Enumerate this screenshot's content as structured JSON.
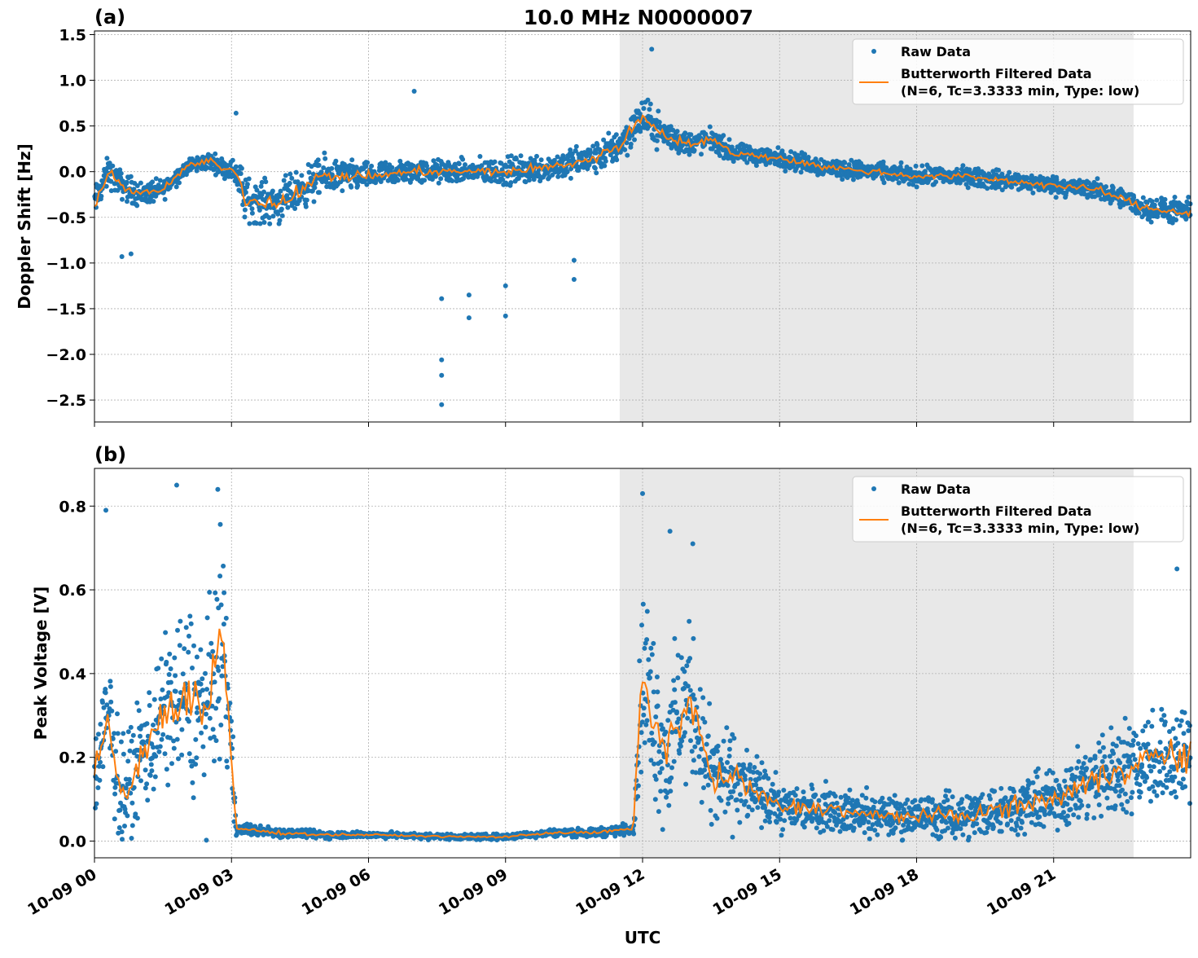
{
  "title": "10.0 MHz N0000007",
  "xlabel": "UTC",
  "colors": {
    "raw": "#1f77b4",
    "filtered": "#ff7f0e",
    "shade": "#e8e8e8",
    "grid": "#b0b0b0"
  },
  "chart_data": [
    {
      "type": "line",
      "panel_label": "(a)",
      "ylabel": "Doppler Shift [Hz]",
      "xlim": [
        0,
        24
      ],
      "ylim": [
        -2.74,
        1.54
      ],
      "x_ticks": [
        0,
        3,
        6,
        9,
        12,
        15,
        18,
        21
      ],
      "x_tick_labels": [
        "10-09 00",
        "10-09 03",
        "10-09 06",
        "10-09 09",
        "10-09 12",
        "10-09 15",
        "10-09 18",
        "10-09 21"
      ],
      "y_ticks": [
        1.5,
        1.0,
        0.5,
        0.0,
        -0.5,
        -1.0,
        -1.5,
        -2.0,
        -2.5
      ],
      "y_tick_labels": [
        "1.5",
        "1.0",
        "0.5",
        "0.0",
        "−0.5",
        "−1.0",
        "−1.5",
        "−2.0",
        "−2.5"
      ],
      "shaded_interval_hours": [
        11.5,
        22.75
      ],
      "grid": true,
      "legend": {
        "placement": "top-right",
        "entries": [
          "Raw Data",
          "Butterworth Filtered Data",
          "(N=6, Tc=3.3333 min, Type: low)"
        ]
      },
      "filtered": {
        "x": [
          0,
          0.3,
          0.6,
          1,
          1.5,
          2,
          2.5,
          2.8,
          3.1,
          3.3,
          4,
          4.5,
          5,
          6,
          7,
          8,
          9,
          10,
          11,
          11.5,
          12,
          12.5,
          13,
          13.5,
          14,
          15,
          16,
          17,
          18,
          19,
          20,
          21,
          22,
          23,
          24
        ],
        "y": [
          -0.35,
          0.0,
          -0.15,
          -0.25,
          -0.2,
          0.05,
          0.12,
          0.05,
          0.0,
          -0.3,
          -0.35,
          -0.2,
          -0.05,
          -0.05,
          0.0,
          0.0,
          0.0,
          0.05,
          0.15,
          0.3,
          0.6,
          0.4,
          0.3,
          0.35,
          0.2,
          0.15,
          0.05,
          0.0,
          -0.05,
          -0.05,
          -0.1,
          -0.15,
          -0.2,
          -0.4,
          -0.45
        ]
      },
      "raw_spread": {
        "x": [
          0,
          1,
          2,
          3,
          3.2,
          5,
          6,
          8,
          9,
          10,
          11,
          12,
          13,
          14,
          18,
          22,
          24
        ],
        "y": [
          0.25,
          0.2,
          0.12,
          0.15,
          0.35,
          0.3,
          0.2,
          0.18,
          0.22,
          0.22,
          0.25,
          0.3,
          0.2,
          0.15,
          0.15,
          0.15,
          0.2
        ]
      },
      "raw_outliers": {
        "x": [
          7.6,
          7.6,
          7.6,
          7.6,
          7.0,
          12.2,
          9.0,
          9.0,
          8.2,
          8.2,
          0.6,
          0.8,
          10.5,
          10.5,
          3.1
        ],
        "y": [
          -2.55,
          -2.23,
          -2.06,
          -1.39,
          0.88,
          1.34,
          -1.58,
          -1.25,
          -1.6,
          -1.35,
          -0.93,
          -0.9,
          -1.18,
          -0.97,
          0.64
        ]
      }
    },
    {
      "type": "line",
      "panel_label": "(b)",
      "ylabel": "Peak Voltage [V]",
      "xlim": [
        0,
        24
      ],
      "ylim": [
        -0.04,
        0.89
      ],
      "x_ticks": [
        0,
        3,
        6,
        9,
        12,
        15,
        18,
        21
      ],
      "x_tick_labels": [
        "10-09 00",
        "10-09 03",
        "10-09 06",
        "10-09 09",
        "10-09 12",
        "10-09 15",
        "10-09 18",
        "10-09 21"
      ],
      "y_ticks": [
        0.8,
        0.6,
        0.4,
        0.2,
        0.0
      ],
      "y_tick_labels": [
        "0.8",
        "0.6",
        "0.4",
        "0.2",
        "0.0"
      ],
      "shaded_interval_hours": [
        11.5,
        22.75
      ],
      "grid": true,
      "legend": {
        "placement": "top-right",
        "entries": [
          "Raw Data",
          "Butterworth Filtered Data",
          "(N=6, Tc=3.3333 min, Type: low)"
        ]
      },
      "filtered": {
        "x": [
          0,
          0.3,
          0.6,
          1,
          1.5,
          2,
          2.5,
          2.8,
          3.0,
          3.1,
          4,
          5,
          6,
          8,
          9,
          10,
          11,
          11.8,
          12,
          12.5,
          13,
          13.5,
          14,
          15,
          16,
          17,
          18,
          19,
          20,
          21,
          22,
          23,
          24
        ],
        "y": [
          0.15,
          0.3,
          0.1,
          0.2,
          0.3,
          0.35,
          0.3,
          0.5,
          0.2,
          0.03,
          0.02,
          0.015,
          0.015,
          0.01,
          0.01,
          0.02,
          0.02,
          0.03,
          0.4,
          0.2,
          0.35,
          0.15,
          0.15,
          0.08,
          0.08,
          0.06,
          0.06,
          0.06,
          0.08,
          0.1,
          0.15,
          0.2,
          0.2
        ]
      },
      "raw_spread": {
        "x": [
          0,
          1,
          2,
          2.8,
          3.0,
          3.1,
          6,
          9,
          11,
          11.8,
          12,
          13,
          14,
          15,
          18,
          21,
          22,
          24
        ],
        "y": [
          0.2,
          0.2,
          0.3,
          0.35,
          0.2,
          0.02,
          0.01,
          0.01,
          0.015,
          0.02,
          0.3,
          0.25,
          0.15,
          0.08,
          0.07,
          0.1,
          0.15,
          0.18
        ]
      },
      "raw_outliers": {
        "x": [
          1.8,
          2.7,
          12.0,
          12.6,
          13.1,
          23.7,
          0.25
        ],
        "y": [
          0.85,
          0.84,
          0.83,
          0.74,
          0.71,
          0.65,
          0.79
        ]
      }
    }
  ]
}
